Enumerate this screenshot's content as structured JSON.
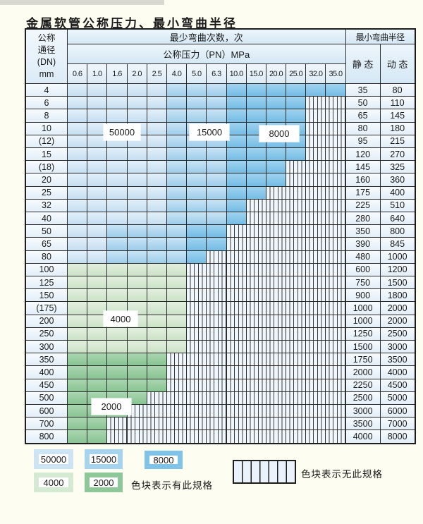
{
  "title": "金属软管公称压力、最小弯曲半径",
  "table": {
    "header": {
      "dn_lines": [
        "公称",
        "通径",
        "(DN)",
        "mm"
      ],
      "bend_cycles": "最少弯曲次数，次",
      "pressure": "公称压力（PN）MPa",
      "min_bend_radius": "最小弯曲半径",
      "static_label": "静 态",
      "dynamic_label": "动 态",
      "pressure_columns": [
        "0.6",
        "1.0",
        "1.6",
        "2.0",
        "2.5",
        "4.0",
        "5.0",
        "6.3",
        "10.0",
        "15.0",
        "20.0",
        "25.0",
        "32.0",
        "35.0"
      ]
    },
    "cell_legend_note": "cells: B1=50000 B2=15000 B3=8000 G1=4000 G2=2000 H=no-spec-hatch",
    "rows": [
      {
        "dn": "4",
        "static": "35",
        "dynamic": "80",
        "cells": [
          "B1",
          "B1",
          "B1",
          "B1",
          "B1",
          "B2",
          "B2",
          "B2",
          "B3",
          "B3",
          "B3",
          "B3",
          "B3",
          "B3"
        ]
      },
      {
        "dn": "6",
        "static": "50",
        "dynamic": "110",
        "cells": [
          "B1",
          "B1",
          "B1",
          "B1",
          "B1",
          "B2",
          "B2",
          "B2",
          "B3",
          "B3",
          "B3",
          "B3",
          "H",
          "H"
        ]
      },
      {
        "dn": "8",
        "static": "65",
        "dynamic": "145",
        "cells": [
          "B1",
          "B1",
          "B1",
          "B1",
          "B1",
          "B2",
          "B2",
          "B2",
          "B3",
          "B3",
          "B3",
          "B3",
          "H",
          "H"
        ]
      },
      {
        "dn": "10",
        "static": "80",
        "dynamic": "180",
        "cells": [
          "B1",
          "B1",
          "B1",
          "B1",
          "B1",
          "B2",
          "B2",
          "B2",
          "B3",
          "B3",
          "B3",
          "B3",
          "H",
          "H"
        ]
      },
      {
        "dn": "(12)",
        "static": "95",
        "dynamic": "215",
        "cells": [
          "B1",
          "B1",
          "B1",
          "B1",
          "B1",
          "B2",
          "B2",
          "B2",
          "B3",
          "B3",
          "B3",
          "B3",
          "H",
          "H"
        ]
      },
      {
        "dn": "15",
        "static": "120",
        "dynamic": "270",
        "cells": [
          "B1",
          "B1",
          "B1",
          "B1",
          "B1",
          "B2",
          "B2",
          "B2",
          "B3",
          "B3",
          "B3",
          "B3",
          "H",
          "H"
        ]
      },
      {
        "dn": "(18)",
        "static": "145",
        "dynamic": "325",
        "cells": [
          "B1",
          "B1",
          "B1",
          "B1",
          "B1",
          "B2",
          "B2",
          "B2",
          "B3",
          "B3",
          "B3",
          "H",
          "H",
          "H"
        ]
      },
      {
        "dn": "20",
        "static": "160",
        "dynamic": "360",
        "cells": [
          "B1",
          "B1",
          "B1",
          "B1",
          "B1",
          "B2",
          "B2",
          "B2",
          "B3",
          "B3",
          "B3",
          "H",
          "H",
          "H"
        ]
      },
      {
        "dn": "25",
        "static": "175",
        "dynamic": "400",
        "cells": [
          "B1",
          "B1",
          "B1",
          "B1",
          "B1",
          "B2",
          "B2",
          "B2",
          "B3",
          "B3",
          "H",
          "H",
          "H",
          "H"
        ]
      },
      {
        "dn": "32",
        "static": "225",
        "dynamic": "510",
        "cells": [
          "B1",
          "B1",
          "B1",
          "B1",
          "B1",
          "B2",
          "B2",
          "B2",
          "B3",
          "H",
          "H",
          "H",
          "H",
          "H"
        ]
      },
      {
        "dn": "40",
        "static": "280",
        "dynamic": "640",
        "cells": [
          "B1",
          "B1",
          "B1",
          "B1",
          "B1",
          "B2",
          "B2",
          "B2",
          "B3",
          "H",
          "H",
          "H",
          "H",
          "H"
        ]
      },
      {
        "dn": "50",
        "static": "350",
        "dynamic": "800",
        "cells": [
          "B1",
          "B1",
          "B2",
          "B2",
          "B2",
          "B2",
          "B3",
          "B3",
          "H",
          "H",
          "H",
          "H",
          "H",
          "H"
        ]
      },
      {
        "dn": "65",
        "static": "390",
        "dynamic": "845",
        "cells": [
          "B1",
          "B1",
          "B2",
          "B2",
          "B2",
          "B2",
          "B3",
          "B3",
          "H",
          "H",
          "H",
          "H",
          "H",
          "H"
        ]
      },
      {
        "dn": "80",
        "static": "480",
        "dynamic": "1000",
        "cells": [
          "B1",
          "B1",
          "B2",
          "B2",
          "B2",
          "B2",
          "B3",
          "H",
          "H",
          "H",
          "H",
          "H",
          "H",
          "H"
        ]
      },
      {
        "dn": "100",
        "static": "600",
        "dynamic": "1200",
        "cells": [
          "G1",
          "G1",
          "G1",
          "G1",
          "G1",
          "G1",
          "H",
          "H",
          "H",
          "H",
          "H",
          "H",
          "H",
          "H"
        ]
      },
      {
        "dn": "125",
        "static": "750",
        "dynamic": "1500",
        "cells": [
          "G1",
          "G1",
          "G1",
          "G1",
          "G1",
          "G1",
          "H",
          "H",
          "H",
          "H",
          "H",
          "H",
          "H",
          "H"
        ]
      },
      {
        "dn": "150",
        "static": "900",
        "dynamic": "1800",
        "cells": [
          "G1",
          "G1",
          "G1",
          "G1",
          "G1",
          "G1",
          "H",
          "H",
          "H",
          "H",
          "H",
          "H",
          "H",
          "H"
        ]
      },
      {
        "dn": "(175)",
        "static": "1000",
        "dynamic": "2000",
        "cells": [
          "G1",
          "G1",
          "G1",
          "G1",
          "G1",
          "G1",
          "H",
          "H",
          "H",
          "H",
          "H",
          "H",
          "H",
          "H"
        ]
      },
      {
        "dn": "200",
        "static": "1000",
        "dynamic": "2000",
        "cells": [
          "G1",
          "G1",
          "G1",
          "G1",
          "G1",
          "G1",
          "H",
          "H",
          "H",
          "H",
          "H",
          "H",
          "H",
          "H"
        ]
      },
      {
        "dn": "250",
        "static": "1250",
        "dynamic": "2500",
        "cells": [
          "G1",
          "G1",
          "G1",
          "G1",
          "G1",
          "G1",
          "H",
          "H",
          "H",
          "H",
          "H",
          "H",
          "H",
          "H"
        ]
      },
      {
        "dn": "300",
        "static": "1500",
        "dynamic": "3000",
        "cells": [
          "G1",
          "G1",
          "G1",
          "G1",
          "G1",
          "G1",
          "H",
          "H",
          "H",
          "H",
          "H",
          "H",
          "H",
          "H"
        ]
      },
      {
        "dn": "350",
        "static": "1750",
        "dynamic": "3500",
        "cells": [
          "G2",
          "G2",
          "G2",
          "G2",
          "G2",
          "H",
          "H",
          "H",
          "H",
          "H",
          "H",
          "H",
          "H",
          "H"
        ]
      },
      {
        "dn": "400",
        "static": "2000",
        "dynamic": "4000",
        "cells": [
          "G2",
          "G2",
          "G2",
          "G2",
          "G2",
          "H",
          "H",
          "H",
          "H",
          "H",
          "H",
          "H",
          "H",
          "H"
        ]
      },
      {
        "dn": "450",
        "static": "2250",
        "dynamic": "4500",
        "cells": [
          "G2",
          "G2",
          "G2",
          "G2",
          "G2",
          "H",
          "H",
          "H",
          "H",
          "H",
          "H",
          "H",
          "H",
          "H"
        ]
      },
      {
        "dn": "500",
        "static": "2500",
        "dynamic": "5000",
        "cells": [
          "G2",
          "G2",
          "G2",
          "G2",
          "H",
          "H",
          "H",
          "H",
          "H",
          "H",
          "H",
          "H",
          "H",
          "H"
        ]
      },
      {
        "dn": "600",
        "static": "3000",
        "dynamic": "6000",
        "cells": [
          "G2",
          "G2",
          "G2",
          "H",
          "H",
          "H",
          "H",
          "H",
          "H",
          "H",
          "H",
          "H",
          "H",
          "H"
        ]
      },
      {
        "dn": "700",
        "static": "3500",
        "dynamic": "7000",
        "cells": [
          "G2",
          "G2",
          "H",
          "H",
          "H",
          "H",
          "H",
          "H",
          "H",
          "H",
          "H",
          "H",
          "H",
          "H"
        ]
      },
      {
        "dn": "800",
        "static": "4000",
        "dynamic": "8000",
        "cells": [
          "G2",
          "G2",
          "H",
          "H",
          "H",
          "H",
          "H",
          "H",
          "H",
          "H",
          "H",
          "H",
          "H",
          "H"
        ]
      }
    ]
  },
  "zone_labels": [
    {
      "text": "50000"
    },
    {
      "text": "15000"
    },
    {
      "text": "8000"
    },
    {
      "text": "4000"
    },
    {
      "text": "2000"
    }
  ],
  "legend": {
    "items": [
      {
        "label": "50000",
        "key": "B1"
      },
      {
        "label": "15000",
        "key": "B2"
      },
      {
        "label": "8000",
        "key": "B3"
      },
      {
        "label": "4000",
        "key": "G1"
      },
      {
        "label": "2000",
        "key": "G2"
      }
    ],
    "has_spec_text": "色块表示有此规格",
    "no_spec_text": "色块表示无此规格"
  },
  "colors": {
    "B1": {
      "top": "#e3f0fa",
      "bottom": "#c5def1"
    },
    "B2": {
      "top": "#c9e4f5",
      "bottom": "#9dcdea"
    },
    "B3": {
      "top": "#a0d3ef",
      "bottom": "#74bce5"
    },
    "G1": {
      "top": "#e2efde",
      "bottom": "#cce3c8"
    },
    "G2": {
      "top": "#aad6b0",
      "bottom": "#88c492"
    },
    "grid_line": "#2b2b2b",
    "hatch_background": "#f0f7fc"
  }
}
